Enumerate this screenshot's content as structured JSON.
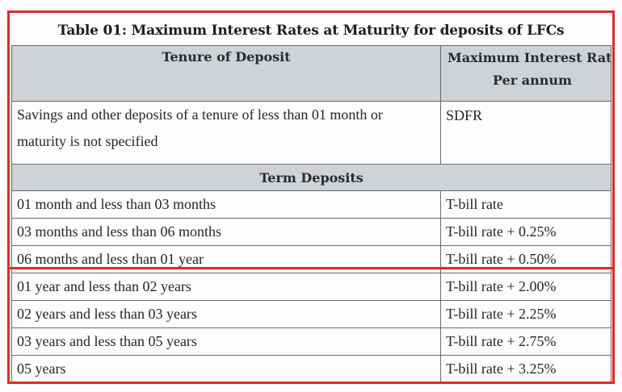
{
  "title": "Table 01: Maximum Interest Rates at Maturity for deposits of LFCs",
  "columns": {
    "tenure": "Tenure of Deposit",
    "max_rate_line1": "Maximum Interest Rate",
    "max_rate_line2": "Per annum"
  },
  "savings_row": {
    "tenure": "Savings and other deposits of a tenure of less than 01 month or maturity is not specified",
    "rate": "SDFR"
  },
  "term_deposits_label": "Term Deposits",
  "rows": [
    {
      "tenure": "01 month and less than 03 months",
      "rate": "T-bill rate"
    },
    {
      "tenure": "03 months and less than 06 months",
      "rate": "T-bill rate + 0.25%"
    },
    {
      "tenure": "06 months and less than 01 year",
      "rate": "T-bill rate + 0.50%"
    },
    {
      "tenure": "01 year and less than 02 years",
      "rate": "T-bill rate + 2.00%"
    },
    {
      "tenure": "02 years and less than 03 years",
      "rate": "T-bill rate + 2.25%"
    },
    {
      "tenure": "03 years and less than 05 years",
      "rate": "T-bill rate + 2.75%"
    },
    {
      "tenure": "05 years",
      "rate": "T-bill rate + 3.25%"
    }
  ],
  "highlight_color": "#e02a24"
}
